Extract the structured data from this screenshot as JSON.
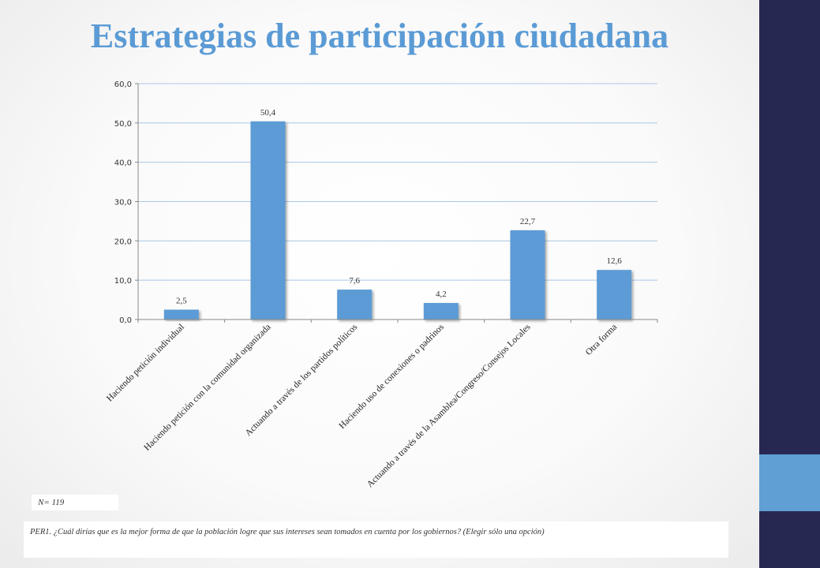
{
  "slide": {
    "title": "Estrategias de participación ciudadana",
    "n_label": "N= 119",
    "question": "PER1. ¿Cuál dirías que es la mejor forma de que la población logre que sus intereses sean tomados en cuenta por los gobiernos? (Elegir sólo una opción)",
    "colors": {
      "title": "#5b9bd5",
      "sidebar": "#272852",
      "sidebar_accent": "#5f9fd4"
    }
  },
  "chart_data": {
    "type": "bar",
    "title": "",
    "xlabel": "",
    "ylabel": "",
    "categories": [
      "Haciendo petición individual",
      "Haciendo petición con la comunidad organizada",
      "Actuando a través de los  partidos políticos",
      "Haciendo uso de conexiones o padrinos",
      "Actuando a través de la Asamblea/Congreso/Consejos Locales",
      "Otra forma"
    ],
    "values": [
      2.5,
      50.4,
      7.6,
      4.2,
      22.7,
      12.6
    ],
    "value_labels": [
      "2,5",
      "50,4",
      "7,6",
      "4,2",
      "22,7",
      "12,6"
    ],
    "ylim": [
      0,
      60
    ],
    "yticks": [
      0,
      10,
      20,
      30,
      40,
      50,
      60
    ],
    "ytick_labels": [
      "0,0",
      "10,0",
      "20,0",
      "30,0",
      "40,0",
      "50,0",
      "60,0"
    ],
    "grid": true,
    "legend": "none",
    "bar_color": "#5b9bd5"
  }
}
